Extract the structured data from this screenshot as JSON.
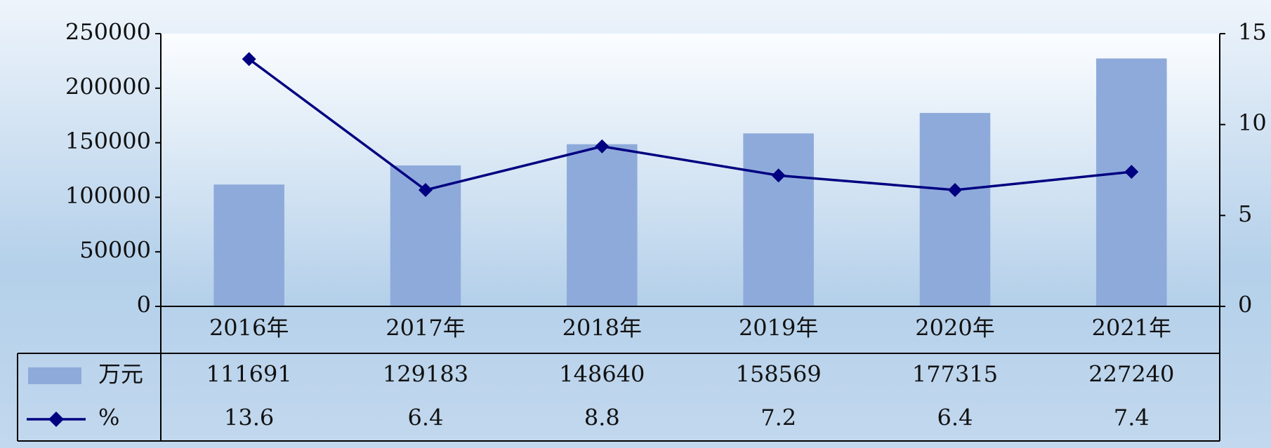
{
  "chart_data": {
    "type": "bar",
    "categories": [
      "2016年",
      "2017年",
      "2018年",
      "2019年",
      "2020年",
      "2021年"
    ],
    "series": [
      {
        "name": "万元",
        "type": "bar",
        "color": "#8eaadb",
        "values": [
          111691,
          129183,
          148640,
          158569,
          177315,
          227240
        ]
      },
      {
        "name": "%",
        "type": "line",
        "axis": "y2",
        "color": "#000080",
        "values": [
          13.6,
          6.4,
          8.8,
          7.2,
          6.4,
          7.4
        ]
      }
    ],
    "ylim": [
      0,
      250000
    ],
    "yticks": [
      0,
      50000,
      100000,
      150000,
      200000,
      250000
    ],
    "y2lim": [
      0,
      15
    ],
    "y2ticks": [
      0,
      5,
      10,
      15
    ]
  }
}
